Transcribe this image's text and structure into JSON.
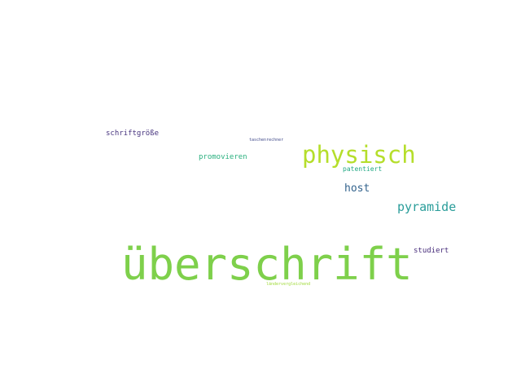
{
  "words": [
    {
      "text": "überschrift",
      "color": "#7ed04b"
    },
    {
      "text": "physisch",
      "color": "#b5de2b"
    },
    {
      "text": "pyramide",
      "color": "#2a9d9a"
    },
    {
      "text": "host",
      "color": "#33638d"
    },
    {
      "text": "schriftgröße",
      "color": "#46337e"
    },
    {
      "text": "promovieren",
      "color": "#2ab07f"
    },
    {
      "text": "studiert",
      "color": "#472d7b"
    },
    {
      "text": "patentiert",
      "color": "#22a884"
    },
    {
      "text": "taschenrechner",
      "color": "#3f4889"
    },
    {
      "text": "ländervergleichend",
      "color": "#a0da39"
    }
  ]
}
